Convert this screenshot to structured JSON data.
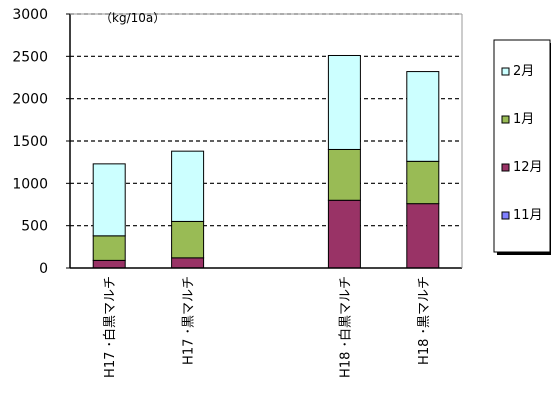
{
  "chart_data": {
    "type": "bar",
    "stacked": true,
    "unit_label": "（kg/10a）",
    "categories": [
      "H17 ･白黒マルチ",
      "H17 ･黒マルチ",
      "",
      "H18 ･白黒マルチ",
      "H18 ･黒マルチ"
    ],
    "series": [
      {
        "name": "11月",
        "color": "#8080ff",
        "values": [
          0,
          0,
          null,
          0,
          0
        ]
      },
      {
        "name": "12月",
        "color": "#993366",
        "values": [
          90,
          120,
          null,
          800,
          760
        ]
      },
      {
        "name": "1月",
        "color": "#99bb55",
        "values": [
          290,
          430,
          null,
          600,
          500
        ]
      },
      {
        "name": "2月",
        "color": "#ccffff",
        "values": [
          850,
          830,
          null,
          1110,
          1060
        ]
      }
    ],
    "ylim": [
      0,
      3000
    ],
    "yticks": [
      "0",
      "500",
      "1000",
      "1500",
      "2000",
      "2500",
      "3000"
    ],
    "grid": "dashed horizontal",
    "legend_position": "right",
    "legend_order": [
      "2月",
      "1月",
      "12月",
      "11月"
    ]
  }
}
